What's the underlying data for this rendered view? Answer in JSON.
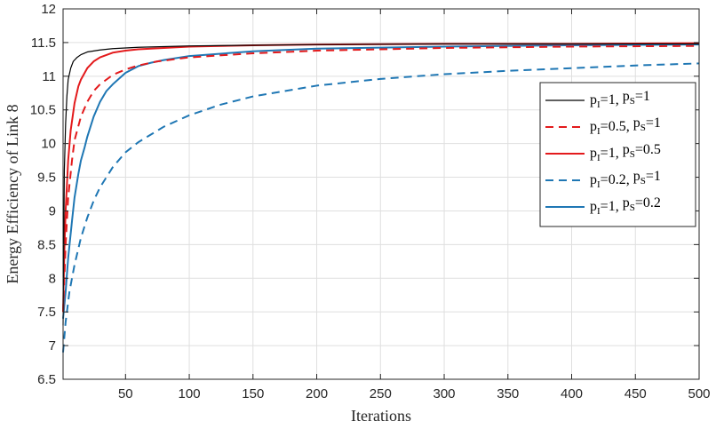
{
  "chart_data": {
    "type": "line",
    "xlabel": "Iterations",
    "ylabel": "Energy Efficiency of Link 8",
    "xlim": [
      1,
      500
    ],
    "ylim": [
      6.5,
      12
    ],
    "xticks": [
      50,
      100,
      150,
      200,
      250,
      300,
      350,
      400,
      450,
      500
    ],
    "yticks": [
      6.5,
      7,
      7.5,
      8,
      8.5,
      9,
      9.5,
      10,
      10.5,
      11,
      11.5,
      12
    ],
    "grid": true,
    "legend_position": "right",
    "series": [
      {
        "name": "p_I=1,   p_S=1",
        "legend": {
          "p1": "p",
          "s1": "I",
          "v1": "=1,   ",
          "p2": "p",
          "s2": "S",
          "v2": "=1"
        },
        "color": "#000000",
        "style": "solid",
        "x": [
          1,
          2,
          3,
          4,
          5,
          7,
          9,
          12,
          15,
          20,
          30,
          40,
          60,
          100,
          200,
          300,
          400,
          500
        ],
        "y": [
          7.3,
          9.6,
          10.3,
          10.7,
          10.95,
          11.12,
          11.22,
          11.28,
          11.32,
          11.36,
          11.39,
          11.41,
          11.43,
          11.45,
          11.47,
          11.48,
          11.48,
          11.48
        ]
      },
      {
        "name": "p_I=0.5, p_S=1",
        "legend": {
          "p1": "p",
          "s1": "I",
          "v1": "=0.5, ",
          "p2": "p",
          "s2": "S",
          "v2": "=1"
        },
        "color": "#e31a1c",
        "style": "dashed",
        "x": [
          1,
          3,
          5,
          8,
          10,
          15,
          20,
          25,
          30,
          40,
          50,
          60,
          75,
          100,
          150,
          200,
          300,
          400,
          500
        ],
        "y": [
          7.5,
          8.5,
          9.2,
          9.75,
          10.05,
          10.4,
          10.62,
          10.78,
          10.88,
          11.02,
          11.1,
          11.16,
          11.22,
          11.28,
          11.34,
          11.38,
          11.42,
          11.44,
          11.45
        ]
      },
      {
        "name": "p_I=1,   p_S=0.5",
        "legend": {
          "p1": "p",
          "s1": "I",
          "v1": "=1,   ",
          "p2": "p",
          "s2": "S",
          "v2": "=0.5"
        },
        "color": "#e31a1c",
        "style": "solid",
        "x": [
          1,
          2,
          3,
          5,
          7,
          10,
          13,
          15,
          20,
          25,
          30,
          40,
          50,
          60,
          80,
          100,
          150,
          200,
          300,
          400,
          500
        ],
        "y": [
          7.5,
          8.4,
          9.0,
          9.75,
          10.2,
          10.6,
          10.85,
          10.95,
          11.12,
          11.22,
          11.28,
          11.35,
          11.38,
          11.4,
          11.42,
          11.44,
          11.46,
          11.47,
          11.48,
          11.48,
          11.49
        ]
      },
      {
        "name": "p_I=0.2, p_S=1",
        "legend": {
          "p1": "p",
          "s1": "I",
          "v1": "=0.2, ",
          "p2": "p",
          "s2": "S",
          "v2": "=1"
        },
        "color": "#1f77b4",
        "style": "dashed",
        "x": [
          1,
          3,
          6,
          10,
          15,
          20,
          25,
          30,
          40,
          50,
          60,
          80,
          100,
          125,
          150,
          200,
          250,
          300,
          350,
          400,
          450,
          500
        ],
        "y": [
          6.9,
          7.35,
          7.8,
          8.2,
          8.6,
          8.9,
          9.15,
          9.35,
          9.65,
          9.87,
          10.02,
          10.25,
          10.42,
          10.58,
          10.7,
          10.86,
          10.96,
          11.03,
          11.08,
          11.12,
          11.16,
          11.19
        ]
      },
      {
        "name": "p_I=1,   p_S=0.2",
        "legend": {
          "p1": "p",
          "s1": "I",
          "v1": "=1,   ",
          "p2": "p",
          "s2": "S",
          "v2": "=0.2"
        },
        "color": "#1f77b4",
        "style": "solid",
        "x": [
          1,
          3,
          5,
          8,
          10,
          13,
          15,
          18,
          20,
          25,
          30,
          35,
          40,
          50,
          60,
          70,
          80,
          100,
          150,
          200,
          300,
          400,
          500
        ],
        "y": [
          7.4,
          7.8,
          8.3,
          8.85,
          9.2,
          9.55,
          9.75,
          9.95,
          10.1,
          10.4,
          10.62,
          10.78,
          10.88,
          11.05,
          11.15,
          11.2,
          11.24,
          11.3,
          11.37,
          11.41,
          11.44,
          11.46,
          11.47
        ]
      }
    ]
  }
}
